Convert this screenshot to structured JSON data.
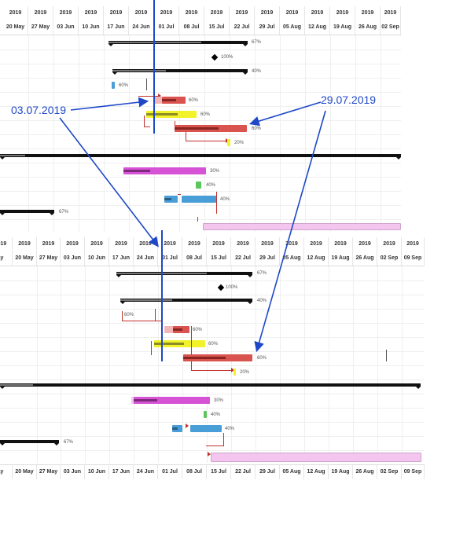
{
  "top_panel": {
    "year_labels": [
      "2019",
      "2019",
      "2019",
      "2019",
      "2019",
      "2019",
      "2019",
      "2019",
      "2019",
      "2019",
      "2019",
      "2019",
      "2019",
      "2019",
      "2019",
      "2019"
    ],
    "week_labels": [
      "20 May",
      "27 May",
      "03 Jun",
      "10 Jun",
      "17 Jun",
      "24 Jun",
      "01 Jul",
      "08 Jul",
      "15 Jul",
      "22 Jul",
      "29 Jul",
      "05 Aug",
      "12 Aug",
      "19 Aug",
      "26 Aug",
      "02 Sep"
    ],
    "tasks": {
      "summary1_pct": "67%",
      "milestone_pct": "100%",
      "summary2_pct": "40%",
      "small1_pct": "60%",
      "red1_pct": "60%",
      "yellow_pct": "60%",
      "red2_pct": "60%",
      "tiny_yellow_pct": "20%",
      "magenta_pct": "30%",
      "green_pct": "40%",
      "blue_pct": "40%",
      "left_summary_pct": "67%"
    }
  },
  "bottom_panel": {
    "year_labels": [
      "2019",
      "2019",
      "2019",
      "2019",
      "2019",
      "2019",
      "2019",
      "2019",
      "2019",
      "2019",
      "2019",
      "2019",
      "2019",
      "2019",
      "2019",
      "2019",
      "2019"
    ],
    "week_labels": [
      "ay",
      "20 May",
      "27 May",
      "03 Jun",
      "10 Jun",
      "17 Jun",
      "24 Jun",
      "01 Jul",
      "08 Jul",
      "15 Jul",
      "22 Jul",
      "29 Jul",
      "05 Aug",
      "12 Aug",
      "19 Aug",
      "26 Aug",
      "02 Sep",
      "09 Sep"
    ],
    "footer_week_labels": [
      "ay",
      "20 May",
      "27 May",
      "03 Jun",
      "10 Jun",
      "17 Jun",
      "24 Jun",
      "01 Jul",
      "08 Jul",
      "15 Jul",
      "22 Jul",
      "29 Jul",
      "05 Aug",
      "12 Aug",
      "19 Aug",
      "26 Aug",
      "02 Sep",
      "09 Sep"
    ],
    "tasks": {
      "summary1_pct": "67%",
      "milestone_pct": "100%",
      "summary2_pct": "40%",
      "small1_pct": "60%",
      "red1_pct": "60%",
      "yellow_pct": "60%",
      "red2_pct": "60%",
      "tiny_yellow_pct": "20%",
      "magenta_pct": "30%",
      "green_pct": "40%",
      "blue_pct": "40%",
      "left_summary_pct": "67%"
    }
  },
  "annotations": {
    "date_left": "03.07.2019",
    "date_right": "29.07.2019"
  },
  "colors": {
    "annotation_blue": "#1e48c8",
    "link_red": "#c0302a",
    "summary_black": "#111111",
    "red_bar": "#d9534f",
    "yellow_bar": "#f2f22a",
    "magenta_bar": "#d653d6",
    "green_bar": "#5cc65c",
    "blue_bar": "#4a9ed8",
    "pink_bar": "#f4c6ef"
  }
}
